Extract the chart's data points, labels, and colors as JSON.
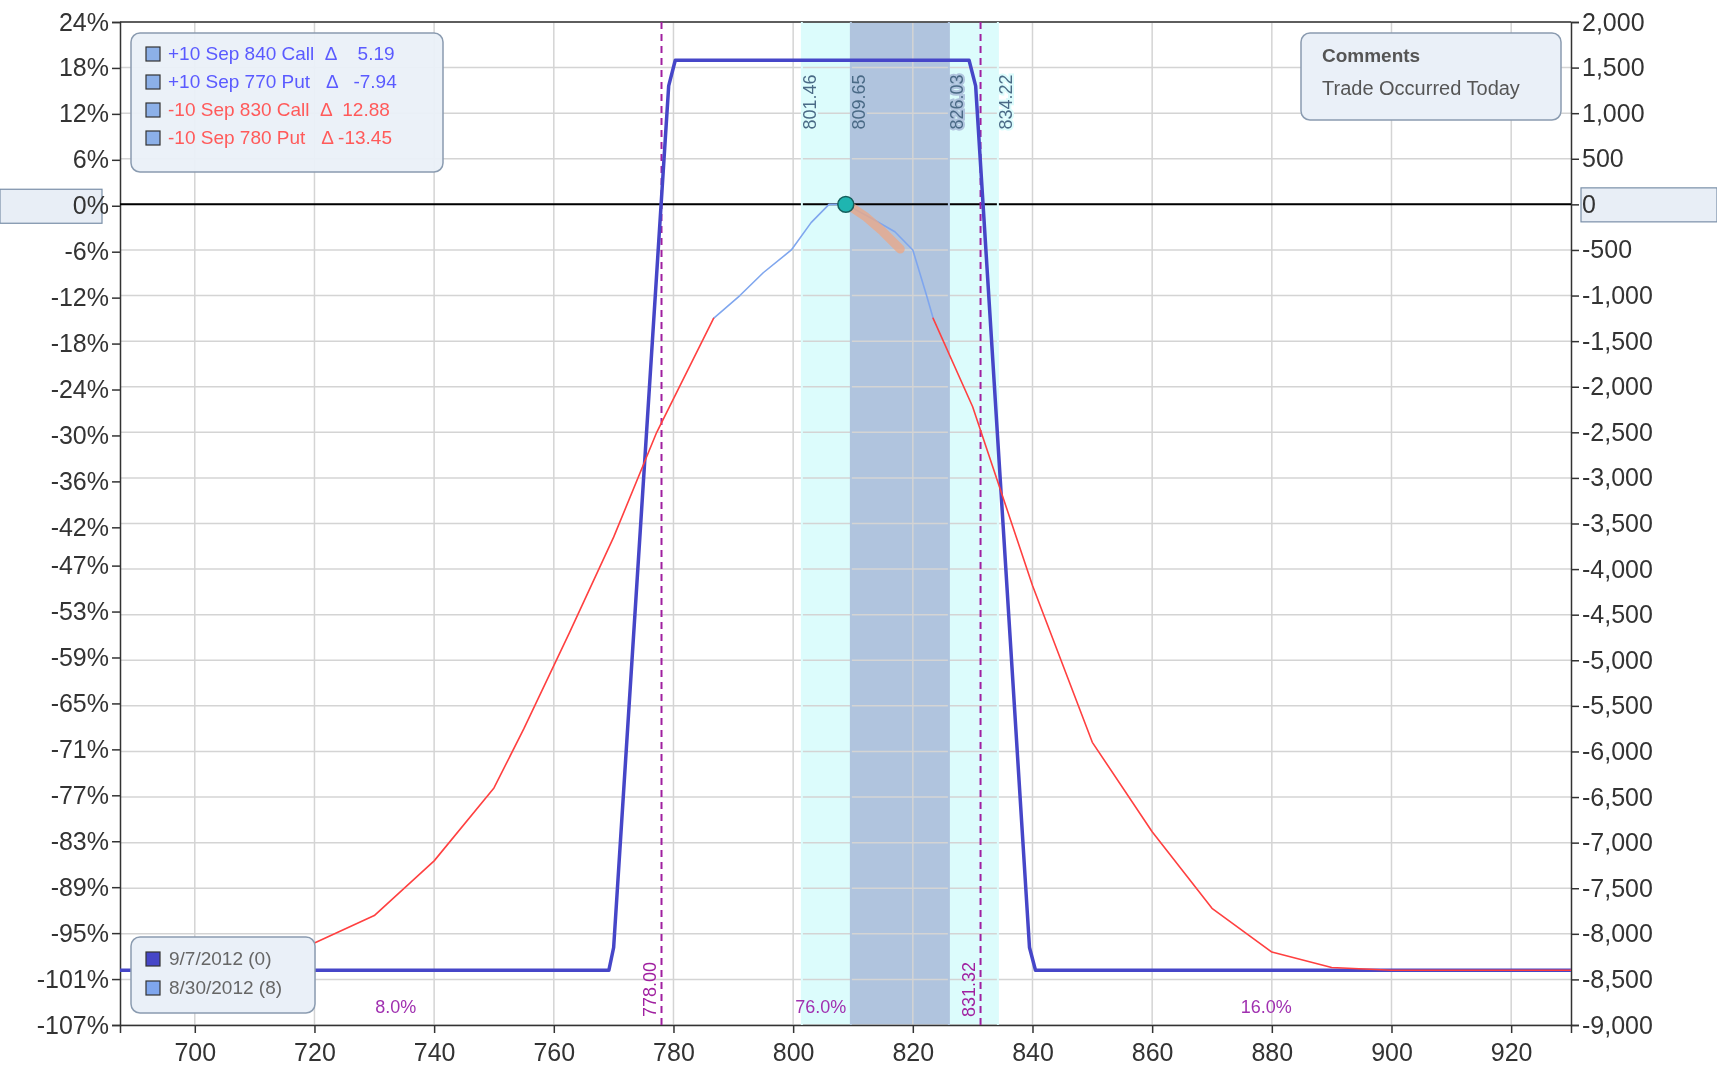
{
  "chart_data": {
    "type": "line",
    "xlim": [
      687.5,
      930
    ],
    "xticks": [
      700,
      720,
      740,
      760,
      780,
      800,
      820,
      840,
      860,
      880,
      900,
      920
    ],
    "ylim": [
      -107,
      24
    ],
    "yticks": [
      {
        "value": 24,
        "label": "24%"
      },
      {
        "value": 18,
        "label": "18%"
      },
      {
        "value": 12,
        "label": "12%"
      },
      {
        "value": 6,
        "label": "6%"
      },
      {
        "value": 0,
        "label": "0%"
      },
      {
        "value": -6,
        "label": "-6%"
      },
      {
        "value": -12,
        "label": "-12%"
      },
      {
        "value": -18,
        "label": "-18%"
      },
      {
        "value": -24,
        "label": "-24%"
      },
      {
        "value": -30,
        "label": "-30%"
      },
      {
        "value": -36,
        "label": "-36%"
      },
      {
        "value": -42,
        "label": "-42%"
      },
      {
        "value": -47,
        "label": "-47%"
      },
      {
        "value": -53,
        "label": "-53%"
      },
      {
        "value": -59,
        "label": "-59%"
      },
      {
        "value": -65,
        "label": "-65%"
      },
      {
        "value": -71,
        "label": "-71%"
      },
      {
        "value": -77,
        "label": "-77%"
      },
      {
        "value": -83,
        "label": "-83%"
      },
      {
        "value": -89,
        "label": "-89%"
      },
      {
        "value": -95,
        "label": "-95%"
      },
      {
        "value": -101,
        "label": "-101%"
      },
      {
        "value": -107,
        "label": "-107%"
      }
    ],
    "y2lim": [
      -9000,
      2000
    ],
    "y2ticks": [
      {
        "value": 2000,
        "label": "2,000"
      },
      {
        "value": 1500,
        "label": "1,500"
      },
      {
        "value": 1000,
        "label": "1,000"
      },
      500,
      0,
      -500,
      {
        "value": -1000,
        "label": "-1,000"
      },
      {
        "value": -1500,
        "label": "-1,500"
      },
      {
        "value": -2000,
        "label": "-2,000"
      },
      {
        "value": -2500,
        "label": "-2,500"
      },
      {
        "value": -3000,
        "label": "-3,000"
      },
      {
        "value": -3500,
        "label": "-3,500"
      },
      {
        "value": -4000,
        "label": "-4,000"
      },
      {
        "value": -4500,
        "label": "-4,500"
      },
      {
        "value": -5000,
        "label": "-5,000"
      },
      {
        "value": -5500,
        "label": "-5,500"
      },
      {
        "value": -6000,
        "label": "-6,000"
      },
      {
        "value": -6500,
        "label": "-6,500"
      },
      {
        "value": -7000,
        "label": "-7,000"
      },
      {
        "value": -7500,
        "label": "-7,500"
      },
      {
        "value": -8000,
        "label": "-8,000"
      },
      {
        "value": -8500,
        "label": "-8,500"
      },
      {
        "value": -9000,
        "label": "-9,000"
      }
    ],
    "grid": "y2",
    "legend": "bottom left",
    "line_style": "solid",
    "series": [
      {
        "name": "9/7/2012 (0)",
        "color": "#4646c8",
        "axis": "y2",
        "x": [
          687.5,
          769.2,
          770,
          779.2,
          780.3,
          829.4,
          830.5,
          839.5,
          840.5,
          930
        ],
        "values": [
          -8400,
          -8400,
          -8150,
          1300,
          1580,
          1580,
          1300,
          -8150,
          -8400,
          -8400
        ]
      },
      {
        "name": "8/30/2012 (8)",
        "color": "#7fa6ee",
        "axis": "y2",
        "x": [
          786.7,
          791.1,
          795,
          799.7,
          803,
          806,
          808.8,
          813,
          817,
          820,
          822.3,
          823.4
        ],
        "values": [
          -1250,
          -1000,
          -750,
          -500,
          -200,
          0,
          0,
          -150,
          -300,
          -500,
          -1000,
          -1250
        ]
      },
      {
        "color": "#ff4040",
        "axis": "y2",
        "x": [
          720,
          730,
          740,
          750,
          755,
          762.6,
          770,
          777.2,
          786.7,
          805,
          823.4,
          830,
          840,
          850,
          860,
          870,
          880,
          890,
          900,
          930
        ],
        "values": [
          -8100,
          -7800,
          -7200,
          -6400,
          -5750,
          -4700,
          -3650,
          -2500,
          -1250,
          null,
          -1250,
          -2220,
          -4180,
          -5900,
          -6880,
          -7720,
          -8200,
          -8370,
          -8400,
          -8400
        ]
      },
      {
        "color": "#e9a98a",
        "axis": "y2",
        "x": [
          809,
          812,
          815,
          817.9
        ],
        "values": [
          0,
          -130,
          -300,
          -490
        ]
      },
      {
        "type": "scatter",
        "marker": "circle",
        "color": "#1fb5b0",
        "axis": "y2",
        "x": [
          808.8
        ],
        "values": [
          0
        ]
      }
    ],
    "ref_lines": [
      {
        "axis": "y2",
        "value": 0,
        "color": "#000000"
      },
      {
        "axis": "x",
        "value": 778,
        "label": "778.00",
        "color": "#a020a0",
        "line_style": "dashed"
      },
      {
        "axis": "x",
        "value": 831.32,
        "label": "831.32",
        "color": "#a020a0",
        "line_style": "dashed"
      },
      {
        "axis": "x",
        "value": 801.46,
        "label": "801.46",
        "color": "#dcfcfc",
        "line_style": "solid"
      },
      {
        "axis": "x",
        "value": 809.65,
        "label": "809.65",
        "color": "#b0c4de",
        "line_style": "solid"
      },
      {
        "axis": "x",
        "value": 826.03,
        "label": "826.03",
        "color": "#b0c4de",
        "line_style": "solid"
      },
      {
        "axis": "x",
        "value": 834.22,
        "label": "834.22",
        "color": "#dcfcfc",
        "line_style": "solid"
      }
    ],
    "bands": [
      {
        "axis": "x",
        "from": 801.46,
        "to": 834.22,
        "color": "#dcfcfc"
      },
      {
        "axis": "x",
        "from": 809.65,
        "to": 826.03,
        "color": "#b0c4de"
      }
    ],
    "annotations": [
      "+10 Sep 840 Call  Δ    5.19",
      "+10 Sep 770 Put   Δ   -7.94",
      "-10 Sep 830 Call  Δ  12.88",
      "-10 Sep 780 Put   Δ -13.45",
      "Comments",
      "Trade Occurred Today",
      "8.0%",
      "76.0%",
      "16.0%"
    ]
  }
}
